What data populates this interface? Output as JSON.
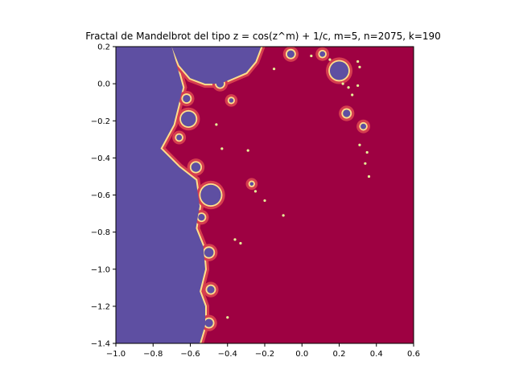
{
  "chart_data": {
    "type": "heatmap",
    "title": "Fractal de Mandelbrot del tipo z = cos(z^m) + 1/c, m=5, n=2075, k=190",
    "xlabel": "",
    "ylabel": "",
    "xlim": [
      -1.0,
      0.6
    ],
    "ylim": [
      -1.4,
      0.2
    ],
    "x_ticks": [
      -1.0,
      -0.8,
      -0.6,
      -0.4,
      -0.2,
      0.0,
      0.2,
      0.4,
      0.6
    ],
    "x_tick_labels": [
      "−1.0",
      "−0.8",
      "−0.6",
      "−0.4",
      "−0.2",
      "0.0",
      "0.2",
      "0.4",
      "0.6"
    ],
    "y_ticks": [
      0.2,
      0.0,
      -0.2,
      -0.4,
      -0.6,
      -0.8,
      -1.0,
      -1.2,
      -1.4
    ],
    "y_tick_labels": [
      "0.2",
      "0.0",
      "−0.2",
      "−0.4",
      "−0.6",
      "−0.8",
      "−1.0",
      "−1.2",
      "−1.4"
    ],
    "grid": false,
    "colormap": "Spectral",
    "colors": {
      "escape": "#9e0142",
      "inside": "#5e4fa2",
      "boundary_red": "#d53e4f",
      "boundary_yellow": "#fee08b",
      "boundary_light": "#e6f598"
    },
    "parameters": {
      "m": 5,
      "n": 2075,
      "k": 190
    },
    "regions": {
      "main_boundary": [
        [
          -0.7,
          0.2
        ],
        [
          -0.66,
          0.1
        ],
        [
          -0.6,
          0.03
        ],
        [
          -0.52,
          0.0
        ],
        [
          -0.44,
          0.0
        ],
        [
          -0.37,
          0.03
        ],
        [
          -0.3,
          0.06
        ],
        [
          -0.25,
          0.12
        ],
        [
          -0.22,
          0.2
        ]
      ],
      "left_boundary": [
        [
          -1.0,
          0.2
        ],
        [
          -0.7,
          0.2
        ],
        [
          -0.64,
          -0.02
        ],
        [
          -0.66,
          -0.1
        ],
        [
          -0.69,
          -0.22
        ],
        [
          -0.76,
          -0.35
        ],
        [
          -0.66,
          -0.45
        ],
        [
          -0.57,
          -0.52
        ],
        [
          -0.55,
          -0.66
        ],
        [
          -0.57,
          -0.78
        ],
        [
          -0.53,
          -0.88
        ],
        [
          -0.52,
          -1.0
        ],
        [
          -0.55,
          -1.12
        ],
        [
          -0.52,
          -1.2
        ],
        [
          -0.52,
          -1.3
        ],
        [
          -0.55,
          -1.4
        ],
        [
          -1.0,
          -1.4
        ]
      ],
      "bulbs": [
        {
          "cx": 0.2,
          "cy": 0.07,
          "r": 0.05
        },
        {
          "cx": 0.24,
          "cy": -0.16,
          "r": 0.02
        },
        {
          "cx": 0.33,
          "cy": -0.23,
          "r": 0.015
        },
        {
          "cx": -0.06,
          "cy": 0.16,
          "r": 0.02
        },
        {
          "cx": 0.11,
          "cy": 0.16,
          "r": 0.015
        },
        {
          "cx": -0.62,
          "cy": -0.08,
          "r": 0.02
        },
        {
          "cx": -0.61,
          "cy": -0.19,
          "r": 0.04
        },
        {
          "cx": -0.66,
          "cy": -0.29,
          "r": 0.015
        },
        {
          "cx": -0.57,
          "cy": -0.45,
          "r": 0.025
        },
        {
          "cx": -0.49,
          "cy": -0.6,
          "r": 0.055
        },
        {
          "cx": -0.54,
          "cy": -0.72,
          "r": 0.018
        },
        {
          "cx": -0.5,
          "cy": -0.91,
          "r": 0.025
        },
        {
          "cx": -0.49,
          "cy": -1.11,
          "r": 0.02
        },
        {
          "cx": -0.5,
          "cy": -1.29,
          "r": 0.022
        },
        {
          "cx": -0.27,
          "cy": -0.54,
          "r": 0.01
        },
        {
          "cx": -0.44,
          "cy": 0.0,
          "r": 0.02
        },
        {
          "cx": -0.38,
          "cy": -0.09,
          "r": 0.012
        }
      ],
      "specks": [
        [
          0.31,
          -0.33
        ],
        [
          0.35,
          -0.37
        ],
        [
          0.34,
          -0.43
        ],
        [
          0.36,
          -0.5
        ],
        [
          0.3,
          0.12
        ],
        [
          0.31,
          0.09
        ],
        [
          0.25,
          -0.02
        ],
        [
          0.27,
          -0.06
        ],
        [
          0.22,
          0.0
        ],
        [
          0.3,
          -0.01
        ],
        [
          -0.25,
          -0.58
        ],
        [
          -0.2,
          -0.63
        ],
        [
          -0.1,
          -0.71
        ],
        [
          -0.36,
          -0.84
        ],
        [
          -0.33,
          -0.86
        ],
        [
          -0.43,
          -0.35
        ],
        [
          -0.46,
          -0.22
        ],
        [
          -0.29,
          -0.36
        ],
        [
          0.05,
          0.15
        ],
        [
          0.15,
          0.13
        ],
        [
          -0.15,
          0.08
        ],
        [
          -0.4,
          -1.26
        ]
      ]
    }
  }
}
